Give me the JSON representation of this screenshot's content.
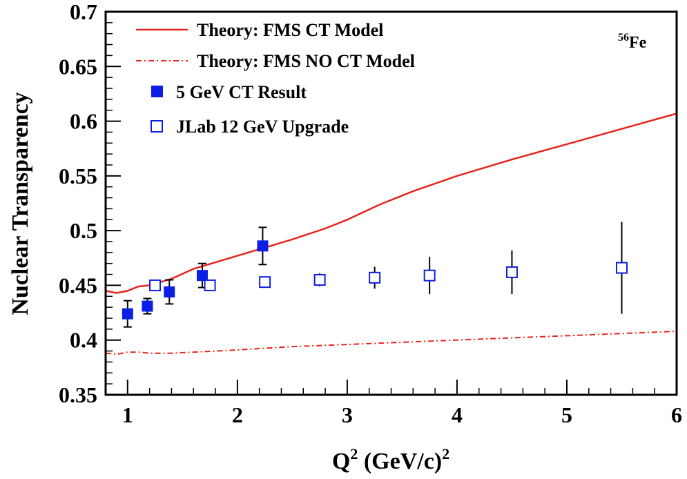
{
  "chart_data": {
    "type": "line",
    "xlabel": "Q",
    "xlabel_sup": "2",
    "xlabel_unit": " (GeV/c)",
    "xlabel_unit_sup": "2",
    "ylabel": "Nuclear Transparency",
    "xlim": [
      0.8,
      6.0
    ],
    "ylim": [
      0.35,
      0.7
    ],
    "x_ticks": [
      1,
      2,
      3,
      4,
      5,
      6
    ],
    "y_ticks": [
      0.35,
      0.4,
      0.45,
      0.5,
      0.55,
      0.6,
      0.65,
      0.7
    ],
    "x_tick_labels": [
      "1",
      "2",
      "3",
      "4",
      "5",
      "6"
    ],
    "y_tick_labels": [
      "0.35",
      "0.4",
      "0.45",
      "0.5",
      "0.55",
      "0.6",
      "0.65",
      "0.7"
    ],
    "annotation": {
      "sup": "56",
      "text": "Fe"
    },
    "legend_position": "top-left",
    "colors": {
      "red": "#e8231a",
      "blue": "#0a1ee6",
      "black": "#000000"
    },
    "series": [
      {
        "name": "Theory: FMS CT Model",
        "kind": "solid-line",
        "x": [
          0.8,
          0.9,
          1.0,
          1.1,
          1.2,
          1.4,
          1.6,
          1.8,
          2.0,
          2.2,
          2.5,
          2.8,
          3.0,
          3.3,
          3.6,
          4.0,
          4.5,
          5.0,
          5.5,
          6.0
        ],
        "y": [
          0.445,
          0.443,
          0.445,
          0.449,
          0.45,
          0.456,
          0.465,
          0.471,
          0.477,
          0.483,
          0.492,
          0.502,
          0.51,
          0.524,
          0.536,
          0.55,
          0.565,
          0.579,
          0.593,
          0.607
        ]
      },
      {
        "name": "Theory: FMS NO CT Model",
        "kind": "dash-dot-line",
        "x": [
          0.8,
          0.9,
          1.0,
          1.1,
          1.2,
          1.4,
          1.6,
          2.0,
          2.5,
          3.0,
          3.5,
          4.0,
          4.5,
          5.0,
          5.5,
          6.0
        ],
        "y": [
          0.388,
          0.387,
          0.389,
          0.389,
          0.388,
          0.388,
          0.389,
          0.391,
          0.394,
          0.396,
          0.398,
          0.4,
          0.402,
          0.404,
          0.406,
          0.408
        ]
      },
      {
        "name": "5 GeV CT Result",
        "kind": "filled-square",
        "points": [
          {
            "x": 1.0,
            "y": 0.424,
            "err": 0.012
          },
          {
            "x": 1.18,
            "y": 0.431,
            "err": 0.007
          },
          {
            "x": 1.38,
            "y": 0.444,
            "err": 0.011
          },
          {
            "x": 1.68,
            "y": 0.459,
            "err": 0.011
          },
          {
            "x": 2.23,
            "y": 0.486,
            "err": 0.017
          }
        ]
      },
      {
        "name": "JLab 12 GeV Upgrade",
        "kind": "open-square",
        "points": [
          {
            "x": 1.25,
            "y": 0.45,
            "err": 0.004
          },
          {
            "x": 1.75,
            "y": 0.45,
            "err": 0.003
          },
          {
            "x": 2.25,
            "y": 0.453,
            "err": 0.003
          },
          {
            "x": 2.75,
            "y": 0.455,
            "err": 0.006
          },
          {
            "x": 3.25,
            "y": 0.457,
            "err": 0.01
          },
          {
            "x": 3.75,
            "y": 0.459,
            "err": 0.017
          },
          {
            "x": 4.5,
            "y": 0.462,
            "err": 0.02
          },
          {
            "x": 5.5,
            "y": 0.466,
            "err": 0.042
          }
        ]
      }
    ]
  }
}
